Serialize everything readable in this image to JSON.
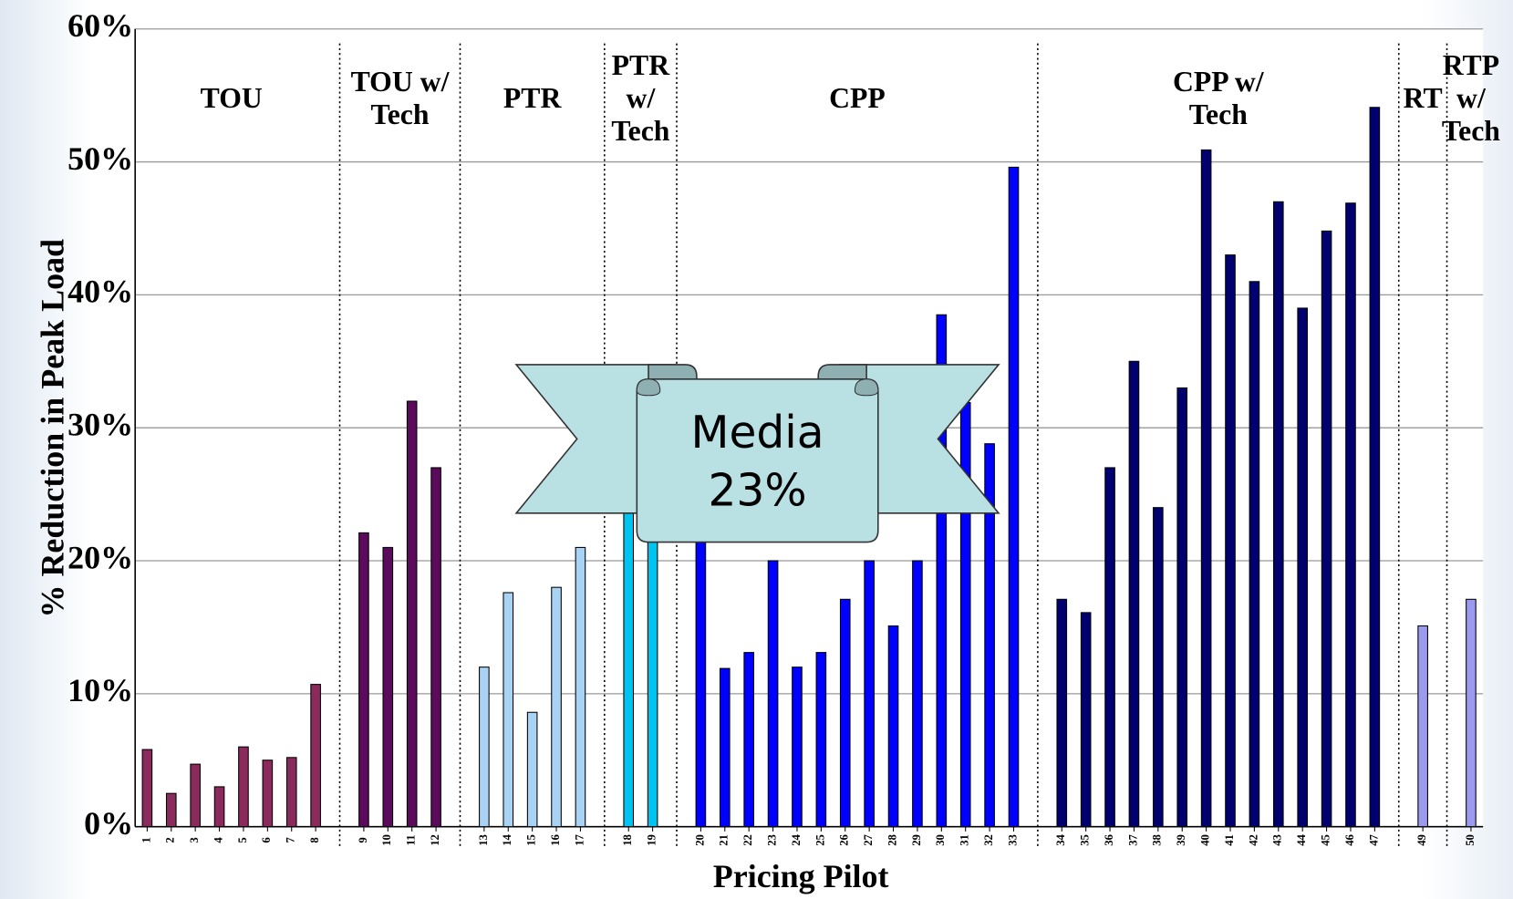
{
  "chart_data": {
    "type": "bar",
    "x_label": "Pricing Pilot",
    "y_label": "% Reduction in Peak Load",
    "annotation": [
      "Media",
      "23%"
    ],
    "categories": [
      "1",
      "2",
      "3",
      "4",
      "5",
      "6",
      "7",
      "8",
      null,
      "9",
      "10",
      "11",
      "12",
      null,
      "13",
      "14",
      "15",
      "16",
      "17",
      null,
      "18",
      "19",
      null,
      "20",
      "21",
      "22",
      "23",
      "24",
      "25",
      "26",
      "27",
      "28",
      "29",
      "30",
      "31",
      "32",
      "33",
      null,
      "34",
      "35",
      "36",
      "37",
      "38",
      "39",
      "40",
      "41",
      "42",
      "43",
      "44",
      "45",
      "46",
      "47",
      null,
      "49",
      null,
      "50"
    ],
    "series": [
      {
        "name": "TOU",
        "color": "#8b2a5c",
        "values": [
          5.8,
          2.5,
          4.7,
          3.0,
          6.0,
          5.0,
          5.2,
          10.7,
          null,
          null,
          null,
          null,
          null,
          null,
          null,
          null,
          null,
          null,
          null,
          null,
          null,
          null,
          null,
          null,
          null,
          null,
          null,
          null,
          null,
          null,
          null,
          null,
          null,
          null,
          null,
          null,
          null,
          null,
          null,
          null,
          null,
          null,
          null,
          null,
          null,
          null,
          null,
          null,
          null,
          null,
          null,
          null,
          null,
          null,
          null,
          null
        ]
      },
      {
        "name": "TOU w/\nTech",
        "color": "#5c0a5c",
        "values": [
          null,
          null,
          null,
          null,
          null,
          null,
          null,
          null,
          null,
          22.1,
          21.0,
          32.0,
          27.0,
          null,
          null,
          null,
          null,
          null,
          null,
          null,
          null,
          null,
          null,
          null,
          null,
          null,
          null,
          null,
          null,
          null,
          null,
          null,
          null,
          null,
          null,
          null,
          null,
          null,
          null,
          null,
          null,
          null,
          null,
          null,
          null,
          null,
          null,
          null,
          null,
          null,
          null,
          null,
          null,
          null,
          null,
          null
        ]
      },
      {
        "name": "PTR",
        "color": "#a9d3f5",
        "values": [
          null,
          null,
          null,
          null,
          null,
          null,
          null,
          null,
          null,
          null,
          null,
          null,
          null,
          null,
          12.0,
          17.6,
          8.6,
          18.0,
          21.0,
          null,
          null,
          null,
          null,
          null,
          null,
          null,
          null,
          null,
          null,
          null,
          null,
          null,
          null,
          null,
          null,
          null,
          null,
          null,
          null,
          null,
          null,
          null,
          null,
          null,
          null,
          null,
          null,
          null,
          null,
          null,
          null,
          null,
          null,
          null,
          null,
          null
        ]
      },
      {
        "name": "PTR\nw/\nTech",
        "color": "#00c3f0",
        "values": [
          null,
          null,
          null,
          null,
          null,
          null,
          null,
          null,
          null,
          null,
          null,
          null,
          null,
          null,
          null,
          null,
          null,
          null,
          null,
          null,
          24.0,
          22.0,
          null,
          null,
          null,
          null,
          null,
          null,
          null,
          null,
          null,
          null,
          null,
          null,
          null,
          null,
          null,
          null,
          null,
          null,
          null,
          null,
          null,
          null,
          null,
          null,
          null,
          null,
          null,
          null,
          null,
          null,
          null,
          null,
          null,
          null
        ]
      },
      {
        "name": "CPP",
        "color": "#0000ff",
        "values": [
          null,
          null,
          null,
          null,
          null,
          null,
          null,
          null,
          null,
          null,
          null,
          null,
          null,
          null,
          null,
          null,
          null,
          null,
          null,
          null,
          null,
          null,
          null,
          22.0,
          11.9,
          13.1,
          20.0,
          12.0,
          13.1,
          17.1,
          20.0,
          15.1,
          20.0,
          38.5,
          31.9,
          28.8,
          49.6,
          null,
          null,
          null,
          null,
          null,
          null,
          null,
          null,
          null,
          null,
          null,
          null,
          null,
          null,
          null,
          null,
          null,
          null,
          null
        ]
      },
      {
        "name": "CPP w/\nTech",
        "color": "#00006e",
        "values": [
          null,
          null,
          null,
          null,
          null,
          null,
          null,
          null,
          null,
          null,
          null,
          null,
          null,
          null,
          null,
          null,
          null,
          null,
          null,
          null,
          null,
          null,
          null,
          null,
          null,
          null,
          null,
          null,
          null,
          null,
          null,
          null,
          null,
          null,
          null,
          null,
          null,
          null,
          17.1,
          16.1,
          27.0,
          35.0,
          24.0,
          33.0,
          50.9,
          43.0,
          41.0,
          47.0,
          39.0,
          44.8,
          46.9,
          54.1,
          null,
          null,
          null,
          null
        ]
      },
      {
        "name": "RT",
        "color": "#9a9aee",
        "values": [
          null,
          null,
          null,
          null,
          null,
          null,
          null,
          null,
          null,
          null,
          null,
          null,
          null,
          null,
          null,
          null,
          null,
          null,
          null,
          null,
          null,
          null,
          null,
          null,
          null,
          null,
          null,
          null,
          null,
          null,
          null,
          null,
          null,
          null,
          null,
          null,
          null,
          null,
          null,
          null,
          null,
          null,
          null,
          null,
          null,
          null,
          null,
          null,
          null,
          null,
          null,
          null,
          null,
          15.1,
          null,
          null
        ]
      },
      {
        "name": "RTP\nw/\nTech",
        "color": "#9a9aee",
        "values": [
          null,
          null,
          null,
          null,
          null,
          null,
          null,
          null,
          null,
          null,
          null,
          null,
          null,
          null,
          null,
          null,
          null,
          null,
          null,
          null,
          null,
          null,
          null,
          null,
          null,
          null,
          null,
          null,
          null,
          null,
          null,
          null,
          null,
          null,
          null,
          null,
          null,
          null,
          null,
          null,
          null,
          null,
          null,
          null,
          null,
          null,
          null,
          null,
          null,
          null,
          null,
          null,
          null,
          null,
          null,
          17.1
        ]
      }
    ],
    "ylim": [
      0,
      60
    ],
    "yticks": [
      {
        "value": 0,
        "label": "0%"
      },
      {
        "value": 10,
        "label": "10%"
      },
      {
        "value": 20,
        "label": "20%"
      },
      {
        "value": 30,
        "label": "30%"
      },
      {
        "value": 40,
        "label": "40%"
      },
      {
        "value": 50,
        "label": "50%"
      },
      {
        "value": 60,
        "label": "60%"
      }
    ],
    "grid": true
  }
}
